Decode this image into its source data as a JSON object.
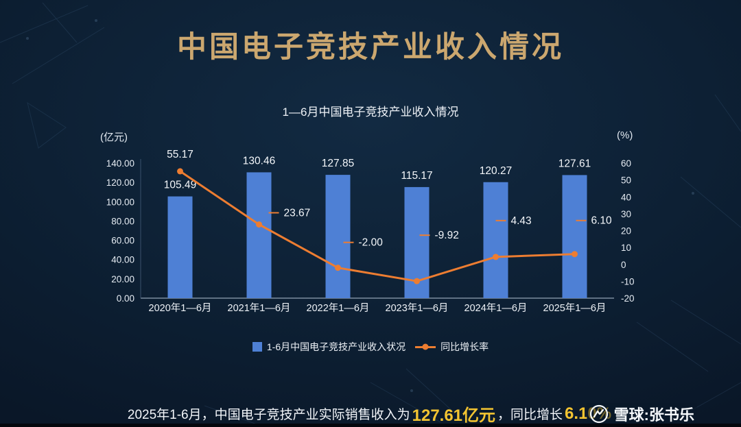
{
  "page": {
    "title": "中国电子竞技产业收入情况",
    "watermark": "雪球:张书乐"
  },
  "footer": {
    "prefix": "2025年1-6月，中国电子竞技产业实际销售收入为",
    "revenue": "127.61亿元",
    "middle": "，同比增长",
    "growth": "6.10%"
  },
  "chart_data": {
    "type": "bar+line",
    "title": "1—6月中国电子竞技产业收入情况",
    "categories": [
      "2020年1—6月",
      "2021年1—6月",
      "2022年1—6月",
      "2023年1—6月",
      "2024年1—6月",
      "2025年1—6月"
    ],
    "left_axis": {
      "unit": "(亿元)",
      "min": 0,
      "max": 140,
      "ticks": [
        0,
        20,
        40,
        60,
        80,
        100,
        120,
        140
      ]
    },
    "right_axis": {
      "unit": "(%)",
      "min": -20,
      "max": 60,
      "ticks": [
        -20,
        -10,
        0,
        10,
        20,
        30,
        40,
        50,
        60
      ]
    },
    "series": [
      {
        "name": "1-6月中国电子竞技产业收入状况",
        "type": "bar",
        "color": "#4e80d5",
        "values": [
          105.49,
          130.46,
          127.85,
          115.17,
          120.27,
          127.61
        ]
      },
      {
        "name": "同比增长率",
        "type": "line",
        "color": "#ed7d31",
        "values": [
          55.17,
          23.67,
          -2.0,
          -9.92,
          4.43,
          6.1
        ]
      }
    ],
    "grid": false,
    "legend_position": "bottom"
  }
}
